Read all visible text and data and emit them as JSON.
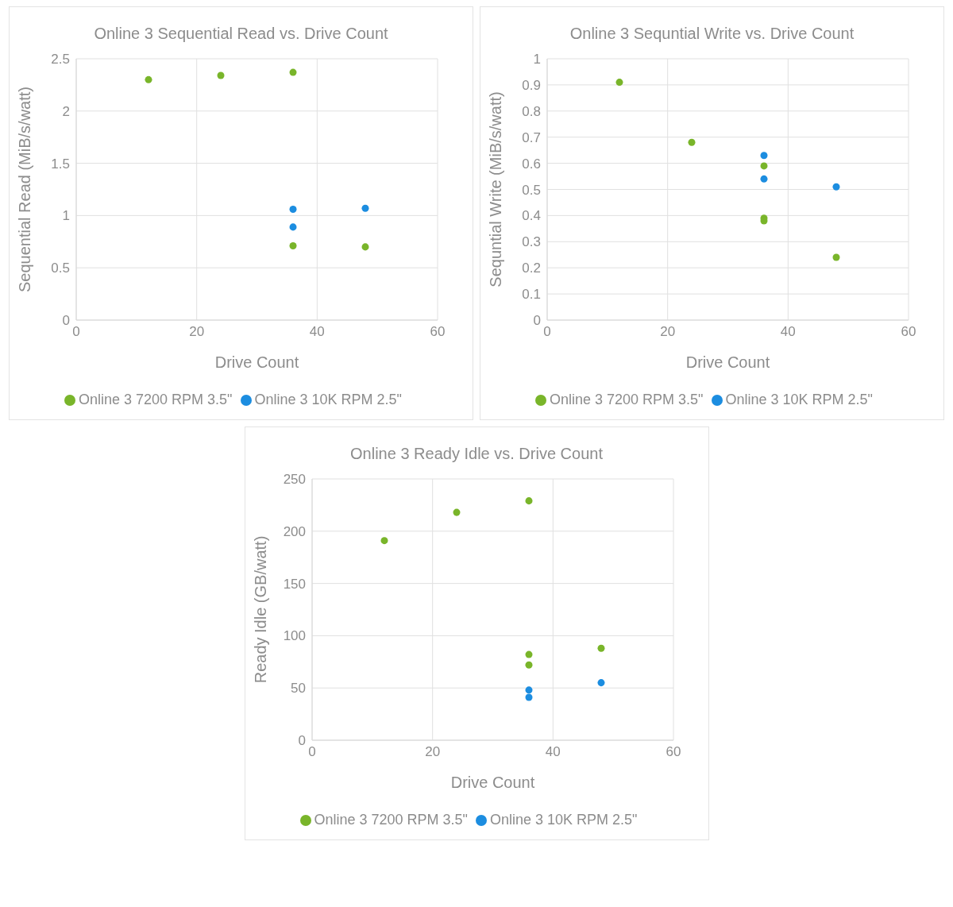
{
  "chart_data": [
    {
      "type": "scatter",
      "title": "Online 3 Sequential Read vs. Drive Count",
      "xlabel": "Drive Count",
      "ylabel": "Sequential Read (MiB/s/watt)",
      "xlim": [
        0,
        60
      ],
      "xticks": [
        0,
        20,
        40,
        60
      ],
      "ylim": [
        0,
        2.5
      ],
      "yticks": [
        0,
        0.5,
        1,
        1.5,
        2,
        2.5
      ],
      "grid": true,
      "legend": "bottom",
      "marker": "circle",
      "series": [
        {
          "name": "Online 3 7200 RPM 3.5\"",
          "color": "#79b52a",
          "x": [
            12,
            24,
            36,
            36,
            48
          ],
          "values": [
            2.3,
            2.34,
            2.37,
            0.71,
            0.7
          ]
        },
        {
          "name": "Online 3 10K RPM 2.5\"",
          "color": "#1c8de0",
          "x": [
            36,
            36,
            48
          ],
          "values": [
            1.06,
            0.89,
            1.07
          ]
        }
      ]
    },
    {
      "type": "scatter",
      "title": "Online 3 Sequntial Write vs. Drive Count",
      "xlabel": "Drive Count",
      "ylabel": "Sequntial Write (MiB/s/watt)",
      "xlim": [
        0,
        60
      ],
      "xticks": [
        0,
        20,
        40,
        60
      ],
      "ylim": [
        0,
        1
      ],
      "yticks": [
        0,
        0.1,
        0.2,
        0.3,
        0.4,
        0.5,
        0.6,
        0.7,
        0.8,
        0.9,
        1
      ],
      "grid": true,
      "legend": "bottom",
      "marker": "circle",
      "series": [
        {
          "name": "Online 3 7200 RPM 3.5\"",
          "color": "#79b52a",
          "x": [
            12,
            24,
            36,
            36,
            36,
            48
          ],
          "values": [
            0.91,
            0.68,
            0.59,
            0.39,
            0.38,
            0.24
          ]
        },
        {
          "name": "Online 3 10K RPM 2.5\"",
          "color": "#1c8de0",
          "x": [
            36,
            36,
            48
          ],
          "values": [
            0.63,
            0.54,
            0.51
          ]
        }
      ]
    },
    {
      "type": "scatter",
      "title": "Online 3 Ready Idle vs. Drive Count",
      "xlabel": "Drive Count",
      "ylabel": "Ready Idle (GB/watt)",
      "xlim": [
        0,
        60
      ],
      "xticks": [
        0,
        20,
        40,
        60
      ],
      "ylim": [
        0,
        250
      ],
      "yticks": [
        0,
        50,
        100,
        150,
        200,
        250
      ],
      "grid": true,
      "legend": "bottom",
      "marker": "circle",
      "series": [
        {
          "name": "Online 3 7200 RPM 3.5\"",
          "color": "#79b52a",
          "x": [
            12,
            24,
            36,
            36,
            36,
            48
          ],
          "values": [
            191,
            218,
            229,
            82,
            72,
            88
          ]
        },
        {
          "name": "Online 3 10K RPM 2.5\"",
          "color": "#1c8de0",
          "x": [
            36,
            36,
            48
          ],
          "values": [
            48,
            41,
            55
          ]
        }
      ]
    }
  ]
}
